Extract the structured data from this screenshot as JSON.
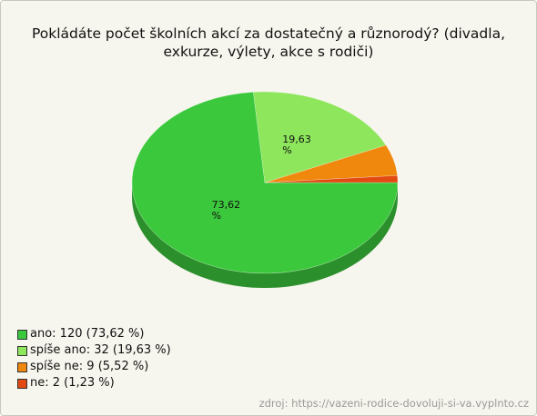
{
  "chart_data": {
    "type": "pie",
    "title": "Pokládáte počet školních akcí za dostatečný a různorodý? (divadla, exkurze, výlety, akce s rodiči)",
    "categories": [
      "ano",
      "spíše ano",
      "spíše ne",
      "ne"
    ],
    "values": [
      73.62,
      19.63,
      5.52,
      1.23
    ],
    "value_labels": [
      "73,62 %",
      "19,63 %",
      null,
      null
    ],
    "legend_labels": [
      "ano: 120 (73,62 %)",
      "spíše ano: 32 (19,63 %)",
      "spíše ne: 9 (5,52 %)",
      "ne: 2 (1,23 %)"
    ],
    "colors": [
      "#3cc83c",
      "#8de65c",
      "#f0880e",
      "#e24a12"
    ],
    "source": "zdroj: https://vazeni-rodice-dovoluji-si-va.vyplnto.cz"
  }
}
